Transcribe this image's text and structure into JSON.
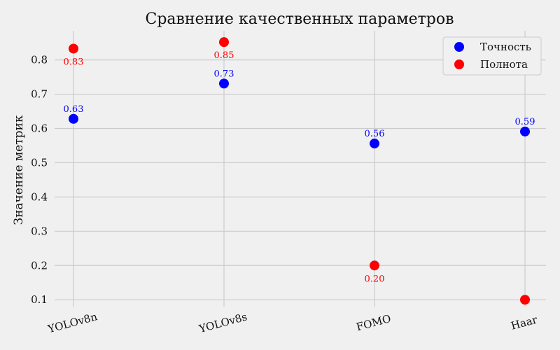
{
  "chart_data": {
    "type": "scatter",
    "title": "Сравнение качественных параметров",
    "xlabel": "",
    "ylabel": "Значение метрик",
    "categories": [
      "YOLOv8n",
      "YOLOv8s",
      "FOMO",
      "Haar"
    ],
    "yticks": [
      "0.1",
      "0.2",
      "0.3",
      "0.4",
      "0.5",
      "0.6",
      "0.7",
      "0.8"
    ],
    "ylim": [
      0.08,
      0.885
    ],
    "grid": true,
    "legend_position": "top-right",
    "series": [
      {
        "name": "Точность",
        "color": "#0000ff",
        "values": [
          0.628,
          0.731,
          0.556,
          0.591
        ],
        "labels": [
          "0.63",
          "0.73",
          "0.56",
          "0.59"
        ]
      },
      {
        "name": "Полнота",
        "color": "#ff0000",
        "values": [
          0.833,
          0.852,
          0.2,
          0.1
        ],
        "labels": [
          "0.83",
          "0.85",
          "0.20",
          ""
        ]
      }
    ]
  }
}
